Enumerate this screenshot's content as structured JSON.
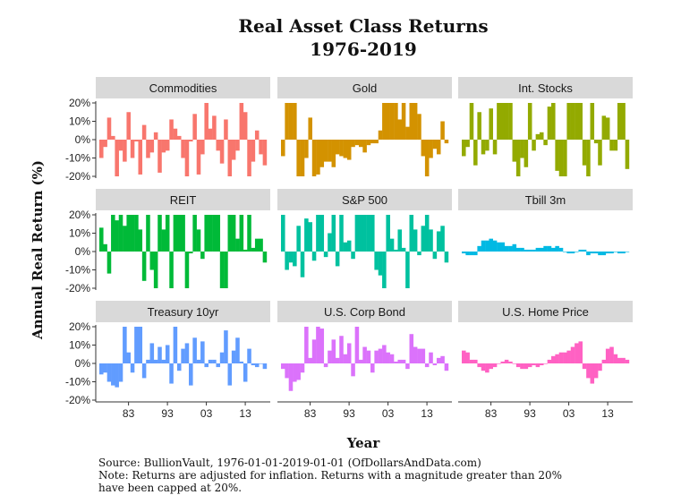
{
  "chart_data": {
    "type": "bar",
    "title_lines": [
      "Real Asset Class Returns",
      "1976-2019"
    ],
    "xlabel": "Year",
    "ylabel": "Annual Real Return (%)",
    "ylim": [
      -20,
      20
    ],
    "y_ticks": [
      20,
      10,
      0,
      -10,
      -20
    ],
    "y_tick_labels": [
      "20%",
      "10%",
      "0%",
      "-10%",
      "-20%"
    ],
    "x_ticks": [
      1983,
      1993,
      2003,
      2013
    ],
    "x_tick_labels": [
      "83",
      "93",
      "03",
      "13"
    ],
    "years": [
      1976,
      1977,
      1978,
      1979,
      1980,
      1981,
      1982,
      1983,
      1984,
      1985,
      1986,
      1987,
      1988,
      1989,
      1990,
      1991,
      1992,
      1993,
      1994,
      1995,
      1996,
      1997,
      1998,
      1999,
      2000,
      2001,
      2002,
      2003,
      2004,
      2005,
      2006,
      2007,
      2008,
      2009,
      2010,
      2011,
      2012,
      2013,
      2014,
      2015,
      2016,
      2017,
      2018
    ],
    "grid": false,
    "legend": "none",
    "caption_lines": [
      "Source: BullionVault, 1976-01-01-2019-01-01 (OfDollarsAndData.com)",
      "Note: Returns are adjusted for inflation. Returns with a magnitude greater than 20%",
      "have been capped at 20%."
    ],
    "panels": [
      {
        "name": "Commodities",
        "color": "#F8766D",
        "values": [
          -10,
          -4,
          12,
          2,
          -20,
          -6,
          -12,
          15,
          -10,
          -1,
          -19,
          8,
          -10,
          -7,
          4,
          -18,
          -7,
          -6,
          11,
          6,
          2,
          -10,
          -20,
          -1,
          14,
          -19,
          -8,
          20,
          6,
          13,
          -6,
          -13,
          11,
          -20,
          -11,
          -6,
          20,
          15,
          -20,
          -12,
          5,
          -8,
          -14
        ]
      },
      {
        "name": "Gold",
        "color": "#D39200",
        "values": [
          -9,
          20,
          20,
          20,
          -20,
          -20,
          -10,
          12,
          -20,
          -19,
          -15,
          -12,
          -12,
          -15,
          -8,
          -9,
          -10,
          -11,
          -4,
          -3,
          -4,
          -7,
          -3,
          -2,
          -2,
          5,
          20,
          20,
          20,
          20,
          11,
          20,
          7,
          20,
          20,
          14,
          -9,
          -20,
          -10,
          -5,
          -8,
          10,
          -2
        ]
      },
      {
        "name": "Int. Stocks",
        "color": "#93AA00",
        "values": [
          -9,
          -4,
          20,
          -14,
          15,
          -8,
          -6,
          17,
          -8,
          20,
          20,
          20,
          20,
          -12,
          -20,
          -10,
          -15,
          20,
          -6,
          3,
          4,
          -3,
          18,
          20,
          -17,
          -20,
          -20,
          20,
          20,
          20,
          20,
          -14,
          -20,
          20,
          -2,
          -14,
          13,
          12,
          -6,
          -6,
          20,
          20,
          -16
        ]
      },
      {
        "name": "REIT",
        "color": "#00BA38",
        "values": [
          13,
          4,
          -12,
          20,
          17,
          20,
          14,
          20,
          20,
          20,
          12,
          -16,
          20,
          -10,
          -20,
          20,
          12,
          20,
          -20,
          20,
          20,
          20,
          -20,
          -1,
          20,
          12,
          -4,
          20,
          20,
          20,
          20,
          -20,
          -20,
          20,
          20,
          7,
          20,
          1,
          20,
          2,
          7,
          7,
          -6
        ]
      },
      {
        "name": "S&P 500",
        "color": "#00C19F",
        "values": [
          20,
          -10,
          -6,
          -8,
          14,
          -14,
          18,
          16,
          -5,
          20,
          20,
          -3,
          10,
          20,
          -8,
          20,
          5,
          6,
          -4,
          20,
          20,
          20,
          20,
          20,
          -10,
          -13,
          -20,
          20,
          7,
          1,
          12,
          2,
          -20,
          20,
          12,
          -2,
          14,
          20,
          12,
          -4,
          11,
          14,
          -6
        ]
      },
      {
        "name": "Tbill 3m",
        "color": "#00B9E3",
        "values": [
          -1,
          -2,
          -2,
          -2,
          3,
          6,
          6,
          7,
          6,
          5,
          5,
          3,
          3,
          4,
          2,
          2,
          1,
          1,
          1,
          2,
          2,
          3,
          3,
          2,
          3,
          2,
          0,
          -1,
          -1,
          0,
          1,
          1,
          -2,
          -1,
          -1,
          -2,
          -2,
          -1,
          -1,
          0,
          -1,
          -1,
          0
        ]
      },
      {
        "name": "Treasury 10yr",
        "color": "#619CFF",
        "values": [
          -6,
          -5,
          -10,
          -12,
          -13,
          -10,
          20,
          6,
          -5,
          20,
          20,
          -8,
          2,
          11,
          2,
          9,
          2,
          10,
          -11,
          20,
          -4,
          8,
          11,
          -12,
          14,
          2,
          12,
          -2,
          2,
          2,
          -2,
          6,
          18,
          -12,
          7,
          14,
          1,
          -10,
          8,
          -1,
          -2,
          0,
          -3
        ]
      },
      {
        "name": "U.S. Corp Bond",
        "color": "#DB72FB",
        "values": [
          -3,
          -8,
          -15,
          -10,
          -9,
          -5,
          20,
          3,
          13,
          20,
          19,
          -2,
          7,
          13,
          3,
          15,
          5,
          11,
          -7,
          20,
          2,
          9,
          7,
          -5,
          7,
          8,
          10,
          6,
          5,
          1,
          2,
          2,
          -3,
          16,
          9,
          8,
          8,
          -2,
          6,
          -1,
          3,
          4,
          -4
        ]
      },
      {
        "name": "U.S. Home Price",
        "color": "#FF61C3",
        "values": [
          7,
          6,
          2,
          2,
          -2,
          -4,
          -5,
          -3,
          -2,
          0,
          1,
          2,
          1,
          0,
          -2,
          -3,
          -3,
          -2,
          -1,
          -2,
          -1,
          0,
          2,
          4,
          5,
          6,
          6,
          7,
          9,
          11,
          12,
          -3,
          -8,
          -11,
          -8,
          -4,
          2,
          8,
          9,
          5,
          3,
          3,
          2
        ]
      }
    ]
  }
}
